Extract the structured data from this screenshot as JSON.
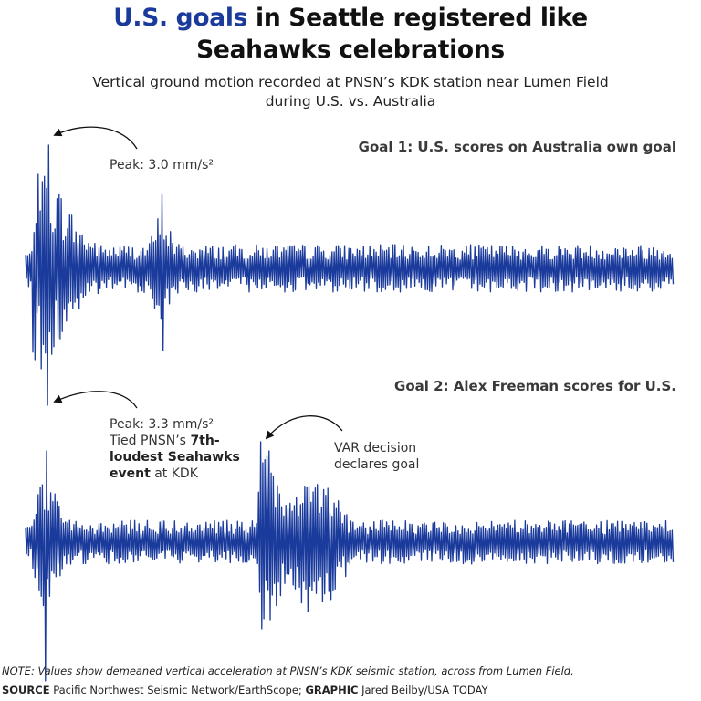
{
  "header": {
    "title_highlight": "U.S. goals",
    "title_rest_line1": " in Seattle registered like",
    "title_line2": "Seahawks celebrations",
    "subtitle_line1": "Vertical ground motion recorded at PNSN’s KDK station near Lumen Field",
    "subtitle_line2": "during U.S. vs. Australia"
  },
  "chart_data": [
    {
      "type": "line",
      "title": "Goal 1: U.S. scores on Australia own goal",
      "unit": "mm/s²",
      "color": "#1a3a9c",
      "peak_value": 3.0,
      "annotations": [
        {
          "text": "Peak: 3.0 mm/s²"
        }
      ]
    },
    {
      "type": "line",
      "title": "Goal 2: Alex Freeman scores for U.S.",
      "unit": "mm/s²",
      "color": "#1a3a9c",
      "peak_value": 3.3,
      "annotations": [
        {
          "text_line1": "Peak: 3.3 mm/s²",
          "text_line2": "Tied PNSN’s ",
          "text_bold1": "7th-",
          "text_bold2": "loudest Seahawks",
          "text_bold3": "event",
          "text_line4_rest": " at KDK"
        },
        {
          "text_line1": "VAR decision",
          "text_line2": "declares goal"
        }
      ]
    }
  ],
  "footer": {
    "note": "NOTE: Values show demeaned vertical acceleration at PNSN’s KDK seismic station, across from Lumen Field.",
    "source_label": "SOURCE",
    "source_text": " Pacific Northwest Seismic Network/EarthScope; ",
    "graphic_label": "GRAPHIC",
    "graphic_text": " Jared Beilby/USA TODAY"
  }
}
